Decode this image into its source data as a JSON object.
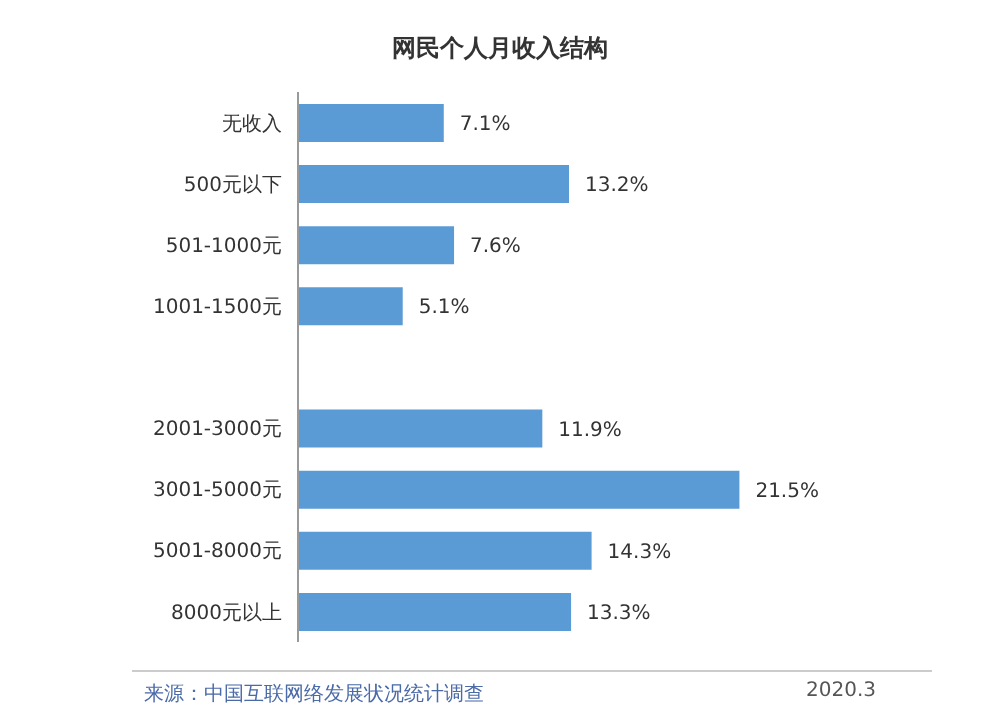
{
  "chart_data": {
    "type": "bar",
    "orientation": "horizontal",
    "title": "网民个人月收入结构",
    "categories": [
      "无收入",
      "500元以下",
      "501-1000元",
      "1001-1500元",
      null,
      "2001-3000元",
      "3001-5000元",
      "5001-8000元",
      "8000元以上"
    ],
    "values": [
      7.1,
      13.2,
      7.6,
      5.1,
      null,
      11.9,
      21.5,
      14.3,
      13.3
    ],
    "value_labels": [
      "7.1%",
      "13.2%",
      "7.6%",
      "5.1%",
      null,
      "11.9%",
      "21.5%",
      "14.3%",
      "13.3%"
    ],
    "color": "#5b9bd5",
    "legend": false,
    "grid": false,
    "annotations": [
      "来源：中国互联网络发展状况统计调查",
      "2020.3"
    ]
  }
}
